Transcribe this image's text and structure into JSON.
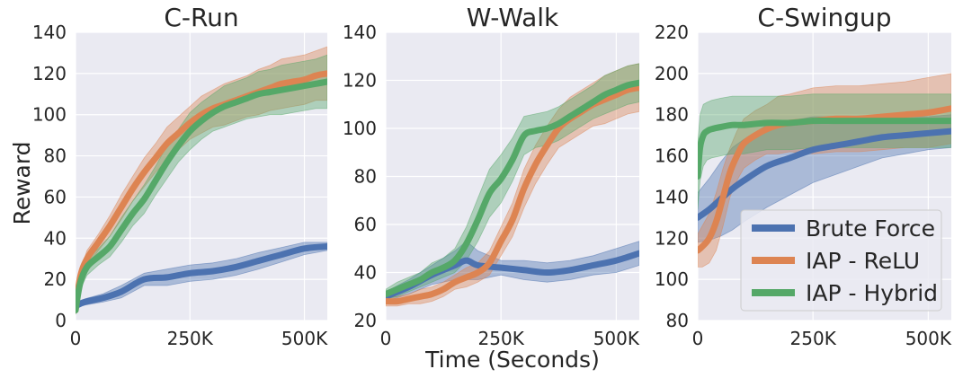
{
  "figure": {
    "ylabel": "Reward",
    "xlabel": "Time (Seconds)"
  },
  "legend": {
    "placement": "lower-right of third panel",
    "entries": [
      {
        "label": "Brute Force",
        "color": "#4c72b0"
      },
      {
        "label": "IAP - ReLU",
        "color": "#dd8452"
      },
      {
        "label": "IAP - Hybrid",
        "color": "#55a868"
      }
    ]
  },
  "chart_data": [
    {
      "type": "line",
      "title": "C-Run",
      "xlim": [
        0,
        550000
      ],
      "ylim": [
        0,
        140
      ],
      "xticks": [
        0,
        250000,
        500000
      ],
      "xtick_labels": [
        "0",
        "250K",
        "500K"
      ],
      "yticks": [
        0,
        20,
        40,
        60,
        80,
        100,
        120,
        140
      ],
      "grid": true,
      "series": [
        {
          "name": "Brute Force",
          "color": "#4c72b0",
          "x": [
            0,
            20000,
            60000,
            100000,
            150000,
            200000,
            250000,
            300000,
            350000,
            400000,
            450000,
            500000,
            550000
          ],
          "y": [
            7,
            9,
            11,
            14,
            20,
            21,
            23,
            24,
            26,
            29,
            32,
            35,
            36
          ],
          "spread": [
            1,
            1.5,
            2,
            3,
            3,
            4,
            4,
            4,
            4,
            4,
            3.5,
            3,
            2
          ]
        },
        {
          "name": "IAP - ReLU",
          "color": "#dd8452",
          "x": [
            0,
            10000,
            25000,
            50000,
            75000,
            100000,
            125000,
            150000,
            175000,
            200000,
            225000,
            250000,
            275000,
            300000,
            325000,
            350000,
            375000,
            400000,
            425000,
            450000,
            475000,
            500000,
            525000,
            550000
          ],
          "y": [
            5,
            21,
            30,
            38,
            46,
            55,
            64,
            72,
            79,
            86,
            91,
            96,
            100,
            103,
            105,
            107,
            109,
            111,
            113,
            115,
            116,
            117,
            119,
            120
          ],
          "spread": [
            2,
            3,
            4,
            4,
            5,
            6,
            6,
            7,
            7,
            8,
            8,
            8,
            9,
            9,
            10,
            10,
            10,
            11,
            11,
            12,
            12,
            12,
            12,
            13
          ]
        },
        {
          "name": "IAP - Hybrid",
          "color": "#55a868",
          "x": [
            0,
            10000,
            25000,
            50000,
            75000,
            100000,
            125000,
            150000,
            175000,
            200000,
            225000,
            250000,
            275000,
            300000,
            325000,
            350000,
            375000,
            400000,
            425000,
            450000,
            475000,
            500000,
            525000,
            550000
          ],
          "y": [
            5,
            18,
            26,
            31,
            36,
            44,
            52,
            59,
            68,
            77,
            85,
            92,
            97,
            101,
            104,
            106,
            108,
            110,
            111,
            112,
            113,
            114,
            115,
            116
          ],
          "spread": [
            2,
            3,
            4,
            4,
            5,
            6,
            6,
            7,
            7,
            8,
            8,
            9,
            9,
            9,
            10,
            10,
            10,
            11,
            11,
            12,
            12,
            12,
            12,
            13
          ]
        }
      ]
    },
    {
      "type": "line",
      "title": "W-Walk",
      "xlim": [
        0,
        550000
      ],
      "ylim": [
        20,
        140
      ],
      "xticks": [
        0,
        250000,
        500000
      ],
      "xtick_labels": [
        "0",
        "250K",
        "500K"
      ],
      "yticks": [
        20,
        40,
        60,
        80,
        100,
        120,
        140
      ],
      "grid": true,
      "series": [
        {
          "name": "Brute Force",
          "color": "#4c72b0",
          "x": [
            0,
            50000,
            100000,
            150000,
            175000,
            200000,
            250000,
            300000,
            350000,
            400000,
            450000,
            500000,
            550000
          ],
          "y": [
            30,
            34,
            39,
            43,
            45,
            43,
            42,
            41,
            40,
            41,
            43,
            45,
            48
          ],
          "spread": [
            2,
            3,
            4,
            6,
            8,
            6,
            3,
            4,
            4,
            4,
            4,
            5,
            5
          ]
        },
        {
          "name": "IAP - ReLU",
          "color": "#dd8452",
          "x": [
            0,
            25000,
            50000,
            75000,
            100000,
            125000,
            150000,
            175000,
            200000,
            225000,
            250000,
            275000,
            300000,
            325000,
            350000,
            375000,
            400000,
            425000,
            450000,
            475000,
            500000,
            525000,
            550000
          ],
          "y": [
            28,
            28,
            29,
            30,
            31,
            33,
            36,
            38,
            40,
            44,
            53,
            62,
            75,
            85,
            93,
            100,
            104,
            107,
            110,
            112,
            114,
            116,
            117
          ],
          "spread": [
            2,
            2,
            2,
            3,
            3,
            3,
            3,
            4,
            4,
            5,
            6,
            7,
            8,
            8,
            8,
            8,
            9,
            9,
            9,
            10,
            10,
            10,
            10
          ]
        },
        {
          "name": "IAP - Hybrid",
          "color": "#55a868",
          "x": [
            0,
            25000,
            50000,
            75000,
            100000,
            125000,
            150000,
            175000,
            200000,
            225000,
            250000,
            275000,
            300000,
            325000,
            350000,
            375000,
            400000,
            425000,
            450000,
            475000,
            500000,
            525000,
            550000
          ],
          "y": [
            31,
            33,
            35,
            37,
            40,
            42,
            45,
            52,
            62,
            73,
            79,
            87,
            97,
            99,
            100,
            102,
            105,
            108,
            111,
            114,
            116,
            118,
            119
          ],
          "spread": [
            2,
            3,
            3,
            3,
            4,
            4,
            5,
            7,
            9,
            10,
            10,
            9,
            8,
            7,
            7,
            7,
            7,
            7,
            7,
            8,
            8,
            8,
            8
          ]
        }
      ]
    },
    {
      "type": "line",
      "title": "C-Swingup",
      "xlim": [
        0,
        550000
      ],
      "ylim": [
        80,
        220
      ],
      "xticks": [
        0,
        250000,
        500000
      ],
      "xtick_labels": [
        "0",
        "250K",
        "500K"
      ],
      "yticks": [
        80,
        100,
        120,
        140,
        160,
        180,
        200,
        220
      ],
      "grid": true,
      "series": [
        {
          "name": "Brute Force",
          "color": "#4c72b0",
          "x": [
            0,
            25000,
            50000,
            75000,
            100000,
            150000,
            200000,
            250000,
            300000,
            350000,
            400000,
            450000,
            500000,
            550000
          ],
          "y": [
            130,
            134,
            139,
            144,
            148,
            155,
            159,
            163,
            165,
            167,
            169,
            170,
            171,
            172
          ],
          "spread": [
            12,
            15,
            18,
            20,
            20,
            20,
            18,
            16,
            14,
            12,
            10,
            9,
            8,
            8
          ]
        },
        {
          "name": "IAP - ReLU",
          "color": "#dd8452",
          "x": [
            0,
            10000,
            25000,
            40000,
            55000,
            70000,
            85000,
            100000,
            125000,
            150000,
            175000,
            200000,
            250000,
            300000,
            350000,
            400000,
            450000,
            500000,
            550000
          ],
          "y": [
            114,
            116,
            120,
            128,
            140,
            152,
            160,
            166,
            170,
            173,
            175,
            176,
            177,
            178,
            178,
            179,
            180,
            181,
            183
          ],
          "spread": [
            8,
            10,
            12,
            14,
            14,
            12,
            12,
            12,
            12,
            12,
            14,
            14,
            16,
            16,
            16,
            16,
            16,
            17,
            17
          ]
        },
        {
          "name": "IAP - Hybrid",
          "color": "#55a868",
          "x": [
            0,
            5000,
            12000,
            20000,
            30000,
            50000,
            75000,
            100000,
            150000,
            200000,
            250000,
            300000,
            350000,
            400000,
            450000,
            500000,
            550000
          ],
          "y": [
            150,
            164,
            170,
            172,
            173,
            174,
            175,
            175,
            176,
            176,
            177,
            177,
            177,
            177,
            177,
            177,
            177
          ],
          "spread": [
            16,
            16,
            15,
            14,
            14,
            14,
            14,
            14,
            13,
            13,
            13,
            13,
            13,
            13,
            13,
            13,
            13
          ]
        }
      ]
    }
  ]
}
